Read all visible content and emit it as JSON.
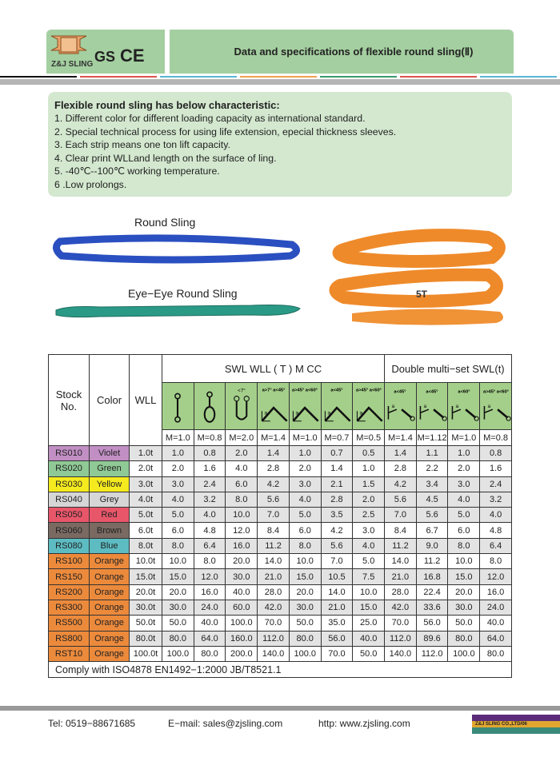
{
  "header": {
    "logo_text": "Z&J SLING",
    "cert_gs": "GS",
    "cert_ce": "CE",
    "title": "Data and specifications of flexible round sling(Ⅱ)"
  },
  "characteristics": {
    "heading": "Flexible round sling has below characteristic:",
    "items": [
      "1. Different color for different loading capacity as international standard.",
      "2. Special technical process for using life extension, epecial thickness sleeves.",
      "3. Each strip means one ton lift capacity.",
      "4. Clear print WLLand length on the surface of ling.",
      "5. -40℃--100℃ working temperature.",
      "6 .Low prolongs."
    ]
  },
  "images": {
    "round_sling_label": "Round Sling",
    "eye_sling_label": "Eye−Eye Round Sling",
    "orange_label": "5T"
  },
  "table": {
    "headers": {
      "stock": "Stock No.",
      "color": "Color",
      "wll": "WLL",
      "swl": "SWL  WLL ( T )  M  CC",
      "double": "Double multi−set SWL(t)"
    },
    "angle_labels": [
      "",
      "",
      "<7°",
      "a>7° a<45°",
      "a>45° a<60°",
      "a<45°",
      "a>45° a<60°",
      "a<45°",
      "a<45°",
      "a<60°",
      "a>45° a<60°"
    ],
    "m_factors": [
      "M=1.0",
      "M=0.8",
      "M=2.0",
      "M=1.4",
      "M=1.0",
      "M=0.7",
      "M=0.5",
      "M=1.4",
      "M=1.12",
      "M=1.0",
      "M=0.8"
    ],
    "rows": [
      {
        "stock": "RS010",
        "color": "Violet",
        "hex": "#c18fc4",
        "wll": "1.0t",
        "values": [
          "1.0",
          "0.8",
          "2.0",
          "1.4",
          "1.0",
          "0.7",
          "0.5",
          "1.4",
          "1.1",
          "1.0",
          "0.8"
        ]
      },
      {
        "stock": "RS020",
        "color": "Green",
        "hex": "#8fc995",
        "wll": "2.0t",
        "values": [
          "2.0",
          "1.6",
          "4.0",
          "2.8",
          "2.0",
          "1.4",
          "1.0",
          "2.8",
          "2.2",
          "2.0",
          "1.6"
        ]
      },
      {
        "stock": "RS030",
        "color": "Yellow",
        "hex": "#f5ea1e",
        "wll": "3.0t",
        "values": [
          "3.0",
          "2.4",
          "6.0",
          "4.2",
          "3.0",
          "2.1",
          "1.5",
          "4.2",
          "3.4",
          "3.0",
          "2.4"
        ]
      },
      {
        "stock": "RS040",
        "color": "Grey",
        "hex": "#d6d6d6",
        "wll": "4.0t",
        "values": [
          "4.0",
          "3.2",
          "8.0",
          "5.6",
          "4.0",
          "2.8",
          "2.0",
          "5.6",
          "4.5",
          "4.0",
          "3.2"
        ]
      },
      {
        "stock": "RS050",
        "color": "Red",
        "hex": "#e8566a",
        "wll": "5.0t",
        "values": [
          "5.0",
          "4.0",
          "10.0",
          "7.0",
          "5.0",
          "3.5",
          "2.5",
          "7.0",
          "5.6",
          "5.0",
          "4.0"
        ]
      },
      {
        "stock": "RS060",
        "color": "Brown",
        "hex": "#7a6a62",
        "wll": "6.0t",
        "values": [
          "6.0",
          "4.8",
          "12.0",
          "8.4",
          "6.0",
          "4.2",
          "3.0",
          "8.4",
          "6.7",
          "6.0",
          "4.8"
        ]
      },
      {
        "stock": "RS080",
        "color": "Blue",
        "hex": "#5cbcc2",
        "wll": "8.0t",
        "values": [
          "8.0",
          "6.4",
          "16.0",
          "11.2",
          "8.0",
          "5.6",
          "4.0",
          "11.2",
          "9.0",
          "8.0",
          "6.4"
        ]
      },
      {
        "stock": "RS100",
        "color": "Orange",
        "hex": "#ec8a3c",
        "wll": "10.0t",
        "values": [
          "10.0",
          "8.0",
          "20.0",
          "14.0",
          "10.0",
          "7.0",
          "5.0",
          "14.0",
          "11.2",
          "10.0",
          "8.0"
        ]
      },
      {
        "stock": "RS150",
        "color": "Orange",
        "hex": "#ec8a3c",
        "wll": "15.0t",
        "values": [
          "15.0",
          "12.0",
          "30.0",
          "21.0",
          "15.0",
          "10.5",
          "7.5",
          "21.0",
          "16.8",
          "15.0",
          "12.0"
        ]
      },
      {
        "stock": "RS200",
        "color": "Orange",
        "hex": "#ec8a3c",
        "wll": "20.0t",
        "values": [
          "20.0",
          "16.0",
          "40.0",
          "28.0",
          "20.0",
          "14.0",
          "10.0",
          "28.0",
          "22.4",
          "20.0",
          "16.0"
        ]
      },
      {
        "stock": "RS300",
        "color": "Orange",
        "hex": "#ec8a3c",
        "wll": "30.0t",
        "values": [
          "30.0",
          "24.0",
          "60.0",
          "42.0",
          "30.0",
          "21.0",
          "15.0",
          "42.0",
          "33.6",
          "30.0",
          "24.0"
        ]
      },
      {
        "stock": "RS500",
        "color": "Orange",
        "hex": "#ec8a3c",
        "wll": "50.0t",
        "values": [
          "50.0",
          "40.0",
          "100.0",
          "70.0",
          "50.0",
          "35.0",
          "25.0",
          "70.0",
          "56.0",
          "50.0",
          "40.0"
        ]
      },
      {
        "stock": "RS800",
        "color": "Orange",
        "hex": "#ec8a3c",
        "wll": "80.0t",
        "values": [
          "80.0",
          "64.0",
          "160.0",
          "112.0",
          "80.0",
          "56.0",
          "40.0",
          "112.0",
          "89.6",
          "80.0",
          "64.0"
        ]
      },
      {
        "stock": "RST10",
        "color": "Orange",
        "hex": "#ec8a3c",
        "wll": "100.0t",
        "values": [
          "100.0",
          "80.0",
          "200.0",
          "140.0",
          "100.0",
          "70.0",
          "50.0",
          "140.0",
          "112.0",
          "100.0",
          "80.0"
        ]
      }
    ],
    "comply": "Comply with ISO4878 EN1492−1:2000 JB/T8521.1"
  },
  "footer": {
    "tel": "Tel: 0519−88671685",
    "email": "E−mail: sales@zjsling.com",
    "web": "http: www.zjsling.com",
    "badge": "Z&J SLING CO.,LTD/06"
  }
}
